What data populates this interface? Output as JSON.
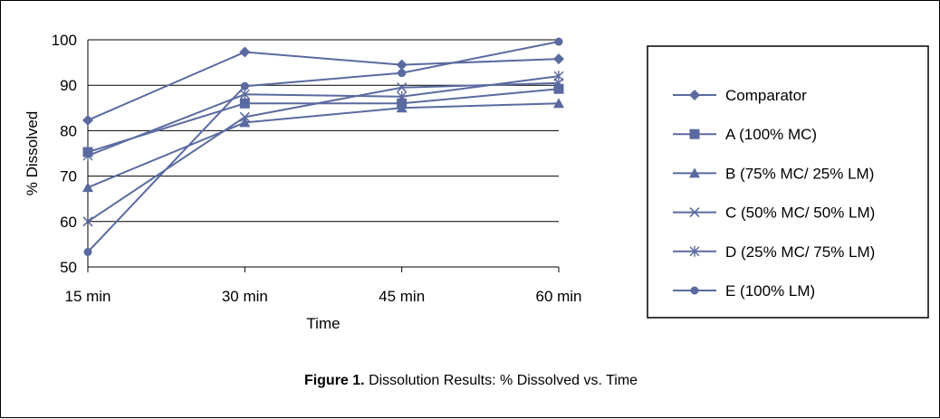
{
  "caption": {
    "label": "Figure 1.",
    "text": " Dissolution Results: % Dissolved vs. Time"
  },
  "colors": {
    "series": "#5a6aa0",
    "grid": "#000000",
    "frame": "#000000"
  },
  "chart_data": {
    "type": "line",
    "title": "",
    "xlabel": "Time",
    "ylabel": "% Dissolved",
    "categories": [
      "15 min",
      "30 min",
      "45 min",
      "60 min"
    ],
    "ylim": [
      50,
      100
    ],
    "yticks": [
      50,
      60,
      70,
      80,
      90,
      100
    ],
    "grid": "horizontal",
    "legend_position": "right",
    "series": [
      {
        "name": "Comparator",
        "marker": "diamond",
        "values": [
          82.3,
          97.3,
          94.5,
          95.8
        ]
      },
      {
        "name": "A (100% MC)",
        "marker": "square",
        "values": [
          75.3,
          86.0,
          86.0,
          89.2
        ]
      },
      {
        "name": "B (75% MC/ 25% LM)",
        "marker": "triangle",
        "values": [
          67.5,
          81.8,
          85.0,
          86.0
        ]
      },
      {
        "name": "C (50% MC/ 50% LM)",
        "marker": "x",
        "values": [
          60.0,
          83.0,
          89.5,
          90.5
        ]
      },
      {
        "name": "D (25% MC/ 75% LM)",
        "marker": "asterisk",
        "values": [
          74.5,
          88.0,
          87.5,
          92.0
        ]
      },
      {
        "name": "E (100% LM)",
        "marker": "circle",
        "values": [
          53.3,
          89.8,
          92.7,
          99.6
        ]
      }
    ]
  }
}
